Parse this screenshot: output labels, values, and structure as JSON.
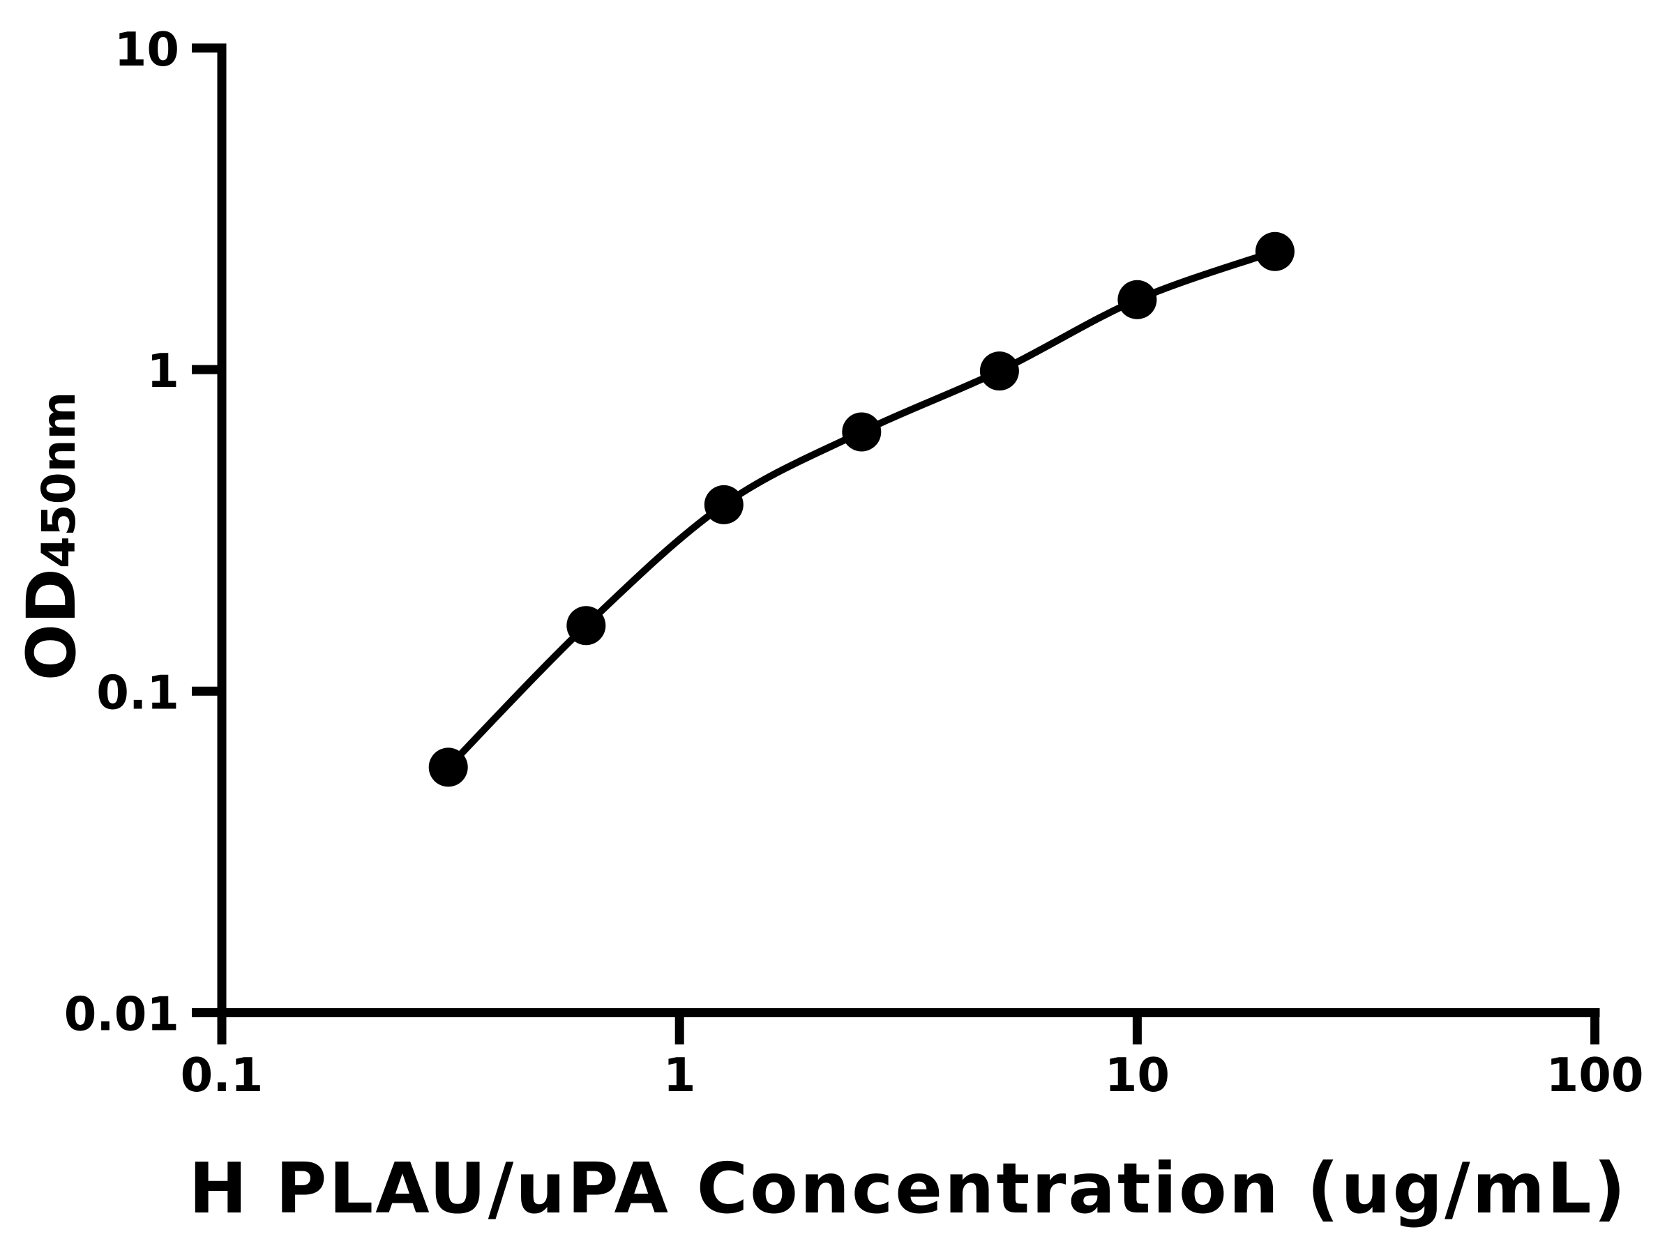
{
  "figure": {
    "background": "#ffffff",
    "foreground": "#000000"
  },
  "chart_data": {
    "type": "scatter",
    "title": "",
    "xlabel": "H PLAU/uPA Concentration (ug/mL)",
    "ylabel_main": "OD",
    "ylabel_sub": "450nm",
    "x_scale": "log",
    "y_scale": "log",
    "xlim": [
      0.1,
      100
    ],
    "ylim": [
      0.01,
      10
    ],
    "grid": false,
    "legend": "none",
    "marker": "filled-circle",
    "line_style": "smooth-curve",
    "color": "#000000",
    "x_ticks": [
      {
        "value": 0.1,
        "label": "0.1"
      },
      {
        "value": 1,
        "label": "1"
      },
      {
        "value": 10,
        "label": "10"
      },
      {
        "value": 100,
        "label": "100"
      }
    ],
    "y_ticks": [
      {
        "value": 0.01,
        "label": "0.01"
      },
      {
        "value": 0.1,
        "label": "0.1"
      },
      {
        "value": 1,
        "label": "1"
      },
      {
        "value": 10,
        "label": "10"
      }
    ],
    "series": [
      {
        "points": [
          {
            "x": 0.3125,
            "y": 0.058
          },
          {
            "x": 0.625,
            "y": 0.16
          },
          {
            "x": 1.25,
            "y": 0.38
          },
          {
            "x": 2.5,
            "y": 0.64
          },
          {
            "x": 5,
            "y": 0.99
          },
          {
            "x": 10,
            "y": 1.65
          },
          {
            "x": 20,
            "y": 2.33
          }
        ]
      }
    ]
  }
}
